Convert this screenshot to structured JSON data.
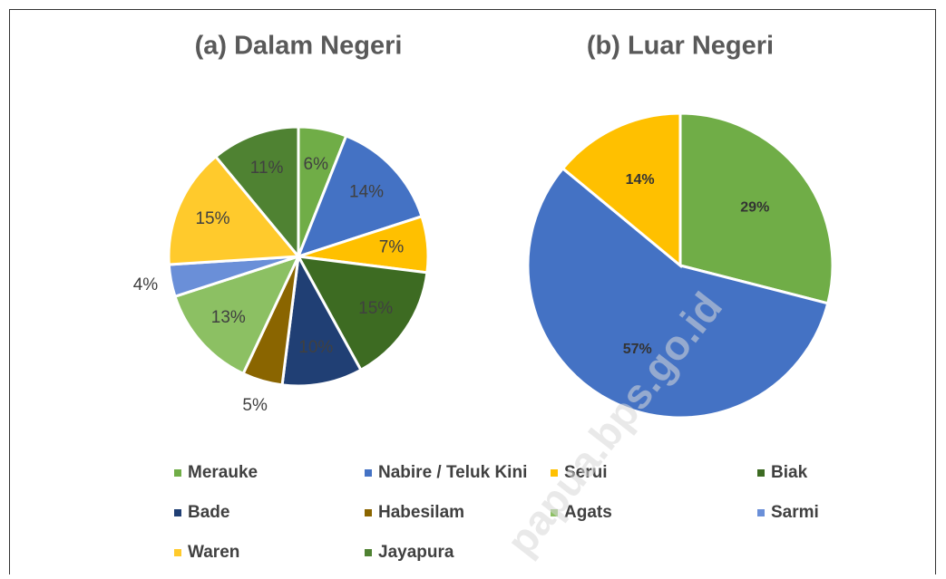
{
  "chart_data": [
    {
      "type": "pie",
      "title": "(a) Dalam Negeri",
      "categories": [
        "Merauke",
        "Nabire / Teluk Kini",
        "Serui",
        "Biak",
        "Bade",
        "Habesilam",
        "Agats",
        "Sarmi",
        "Waren",
        "Jayapura"
      ],
      "values": [
        6,
        14,
        7,
        15,
        10,
        5,
        13,
        4,
        15,
        11
      ],
      "value_labels": [
        "6%",
        "14%",
        "7%",
        "15%",
        "10%",
        "5%",
        "13%",
        "4%",
        "15%",
        "11%"
      ],
      "colors": [
        "#70ad47",
        "#4472c4",
        "#ffc000",
        "#3d6b22",
        "#203f74",
        "#8a6500",
        "#8cc063",
        "#6a8fd8",
        "#ffca2c",
        "#4f8232"
      ]
    },
    {
      "type": "pie",
      "title": "(b) Luar Negeri",
      "values": [
        29,
        57,
        14
      ],
      "value_labels": [
        "29%",
        "57%",
        "14%"
      ],
      "colors": [
        "#70ad47",
        "#4472c4",
        "#ffc000"
      ]
    }
  ],
  "watermark": "papua.bps.go.id"
}
